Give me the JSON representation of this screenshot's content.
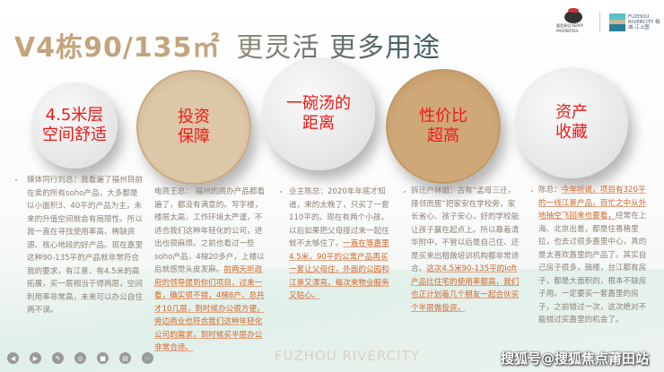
{
  "title": {
    "part1": "V4栋90/135㎡",
    "part2": "更灵活 更多用途"
  },
  "logos": {
    "kerry": "嘉里建设 KERRY PROPERTIES",
    "rivercity": "FUZHOU RIVERCITY 榕城·江上图"
  },
  "circles": [
    {
      "line1": "4.5米层",
      "line2": "空间舒适"
    },
    {
      "line1": "投资",
      "line2": "保障"
    },
    {
      "line1": "一碗汤的",
      "line2": "距离"
    },
    {
      "line1": "性价比",
      "line2": "超高"
    },
    {
      "line1": "资产",
      "line2": "收藏"
    }
  ],
  "columns": [
    {
      "normal1": "媒体同行刘总：我看遍了福州目前在卖的所有soho产品，大多都是以小面积3、40平的产品为主，未来的升值空间就会有局限性。所以我一直在寻找使用率高、稀缺资源、核心地段的好产品。现在嘉里这种90-135平的产品就非常符合我的要求，有江景、有4.5米的高拓展，买一层相当于得两层，空间利用率非常高，未来可以办公自住两不误。",
      "highlight": "",
      "normal2": ""
    },
    {
      "normal1": "电商王总： 福州的商办产品都看遍了，都没有满意的。写字楼，楼层太高，工作环境太严谨，不适合我们这种年轻化的公司，进出也很麻烦。之前也看过一些soho产品，4梯20多户，上楼以后就感觉头皮发麻。",
      "highlight": "前两天听政府的领导提到你们项目，过来一看，确实很不错，4梯8户，总共才10几层，到时候办公很方便，旁边商业也符合我们这种年轻化公司的需求，到时候买半层办公非常合适。",
      "normal2": ""
    },
    {
      "normal1": "业主陈总：2020年年底才知道，来的太晚了，只买了一套110平的。现在有两个小孩，以后如果把父母接过来一起住就不太够住了。",
      "highlight": "一直在等嘉里4.5米，90平的公寓产品再买一套让父母住，外面的公园和江景又漂亮，每次来物业服务又贴心。",
      "normal2": ""
    },
    {
      "normal1": "拆迁户林姐：古有“孟母三迁，择邻而居”把家安在学校旁，家长省心、孩子安心，好的学校能让孩子赢在起点上。所以靠着清华附中，不管以后是自己住、还是买来出租做培训机构都非常适合。",
      "highlight": "这次4.5米90-135平的loft产品比住宅的使用率都高，我们也正计划着几个朋友一起合伙买个半层做投资。",
      "normal2": ""
    },
    {
      "normal1": "陈总：",
      "highlight": "今年听说，项目有320平的一线江景产品，百忙之中从外地抽空飞回来也要看，",
      "normal2": "经常在上海、北京出差，都是住香格里拉，也去过很多嘉里中心，真的是太喜欢嘉里的产品了。其实自己房子很多，鼓楼，台江都有房子，都是大面积的，根本不缺房子用。一定要买一套嘉里的房子，之前错过一次，这次绝对不能错过买嘉里的机会了。"
    }
  ],
  "watermark": "FUZHOU RIVERCITY",
  "sohu_watermark": "搜狐号@搜狐焦点莆田站",
  "toolbar": [
    "prev-icon",
    "next-icon",
    "pen-icon",
    "focus-icon",
    "camera-icon",
    "caption-icon",
    "more-icon"
  ]
}
